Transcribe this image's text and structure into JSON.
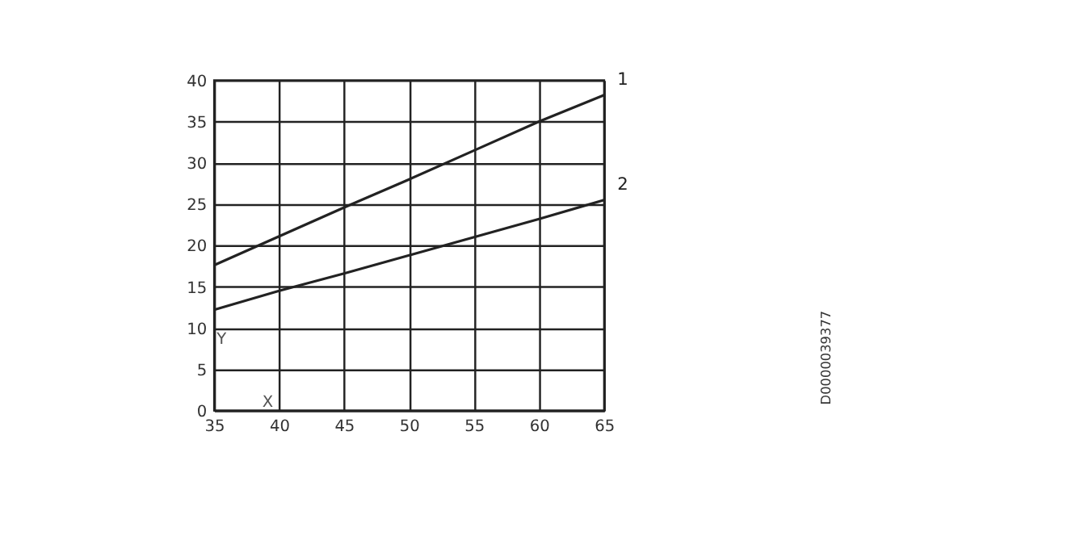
{
  "chart_data": {
    "type": "line",
    "xlabel": "X",
    "ylabel": "Y",
    "x": [
      35,
      40,
      45,
      50,
      55,
      60,
      65
    ],
    "series": [
      {
        "name": "1",
        "color": "#222222",
        "values": [
          17.6,
          21.1,
          24.6,
          28.0,
          31.5,
          35.0,
          38.2
        ]
      },
      {
        "name": "2",
        "color": "#222222",
        "values": [
          12.2,
          14.5,
          16.6,
          18.8,
          21.0,
          23.2,
          25.5
        ]
      }
    ],
    "xlim": [
      35,
      65
    ],
    "xticks": [
      35,
      40,
      45,
      50,
      55,
      60,
      65
    ],
    "ylim": [
      0,
      40
    ],
    "yticks": [
      0,
      5,
      10,
      15,
      20,
      25,
      30,
      35,
      40
    ],
    "grid": true,
    "marker": "none",
    "line_style": "solid",
    "annotations": [
      "D0000039377"
    ]
  }
}
